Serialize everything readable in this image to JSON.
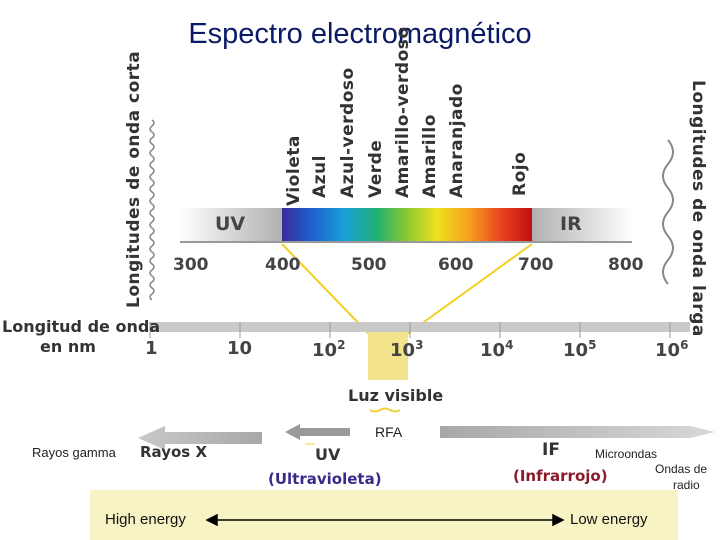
{
  "title": "Espectro electromagnético",
  "left_side_label": "Longitudes de onda corta",
  "right_side_label": "Longitudes de onda larga",
  "colors": [
    "Violeta",
    "Azul",
    "Azul-verdoso",
    "Verde",
    "Amarillo-verdoso",
    "Amarillo",
    "Anaranjado",
    "Rojo"
  ],
  "top_band": {
    "uv": "UV",
    "ir": "IR",
    "ticks": [
      "300",
      "400",
      "500",
      "600",
      "700",
      "800"
    ]
  },
  "scale": {
    "label_line1": "Longitud de onda",
    "label_line2": "en nm",
    "ticks": [
      {
        "base": "1",
        "exp": ""
      },
      {
        "base": "10",
        "exp": ""
      },
      {
        "base": "10",
        "exp": "2"
      },
      {
        "base": "10",
        "exp": "3"
      },
      {
        "base": "10",
        "exp": "4"
      },
      {
        "base": "10",
        "exp": "5"
      },
      {
        "base": "10",
        "exp": "6"
      }
    ]
  },
  "visible_label": "Luz visible",
  "bottom": {
    "rfa": "RFA",
    "gamma": "Rayos gamma",
    "xray": "Rayos X",
    "uv": "UV",
    "uv_full": "(Ultravioleta)",
    "ir": "IF",
    "ir_full": "(Infrarrojo)",
    "microwave": "Microondas",
    "radio_line1": "Ondas de",
    "radio_line2": "radio"
  },
  "energy": {
    "high": "High energy",
    "low": "Low energy"
  },
  "accent_colors": {
    "title": "#0a1a66",
    "infrared_text": "#8b1a2b",
    "uv_text": "#3a2a8a",
    "visible_highlight": "#f3e38a",
    "energy_bar": "#f8f3c4"
  }
}
